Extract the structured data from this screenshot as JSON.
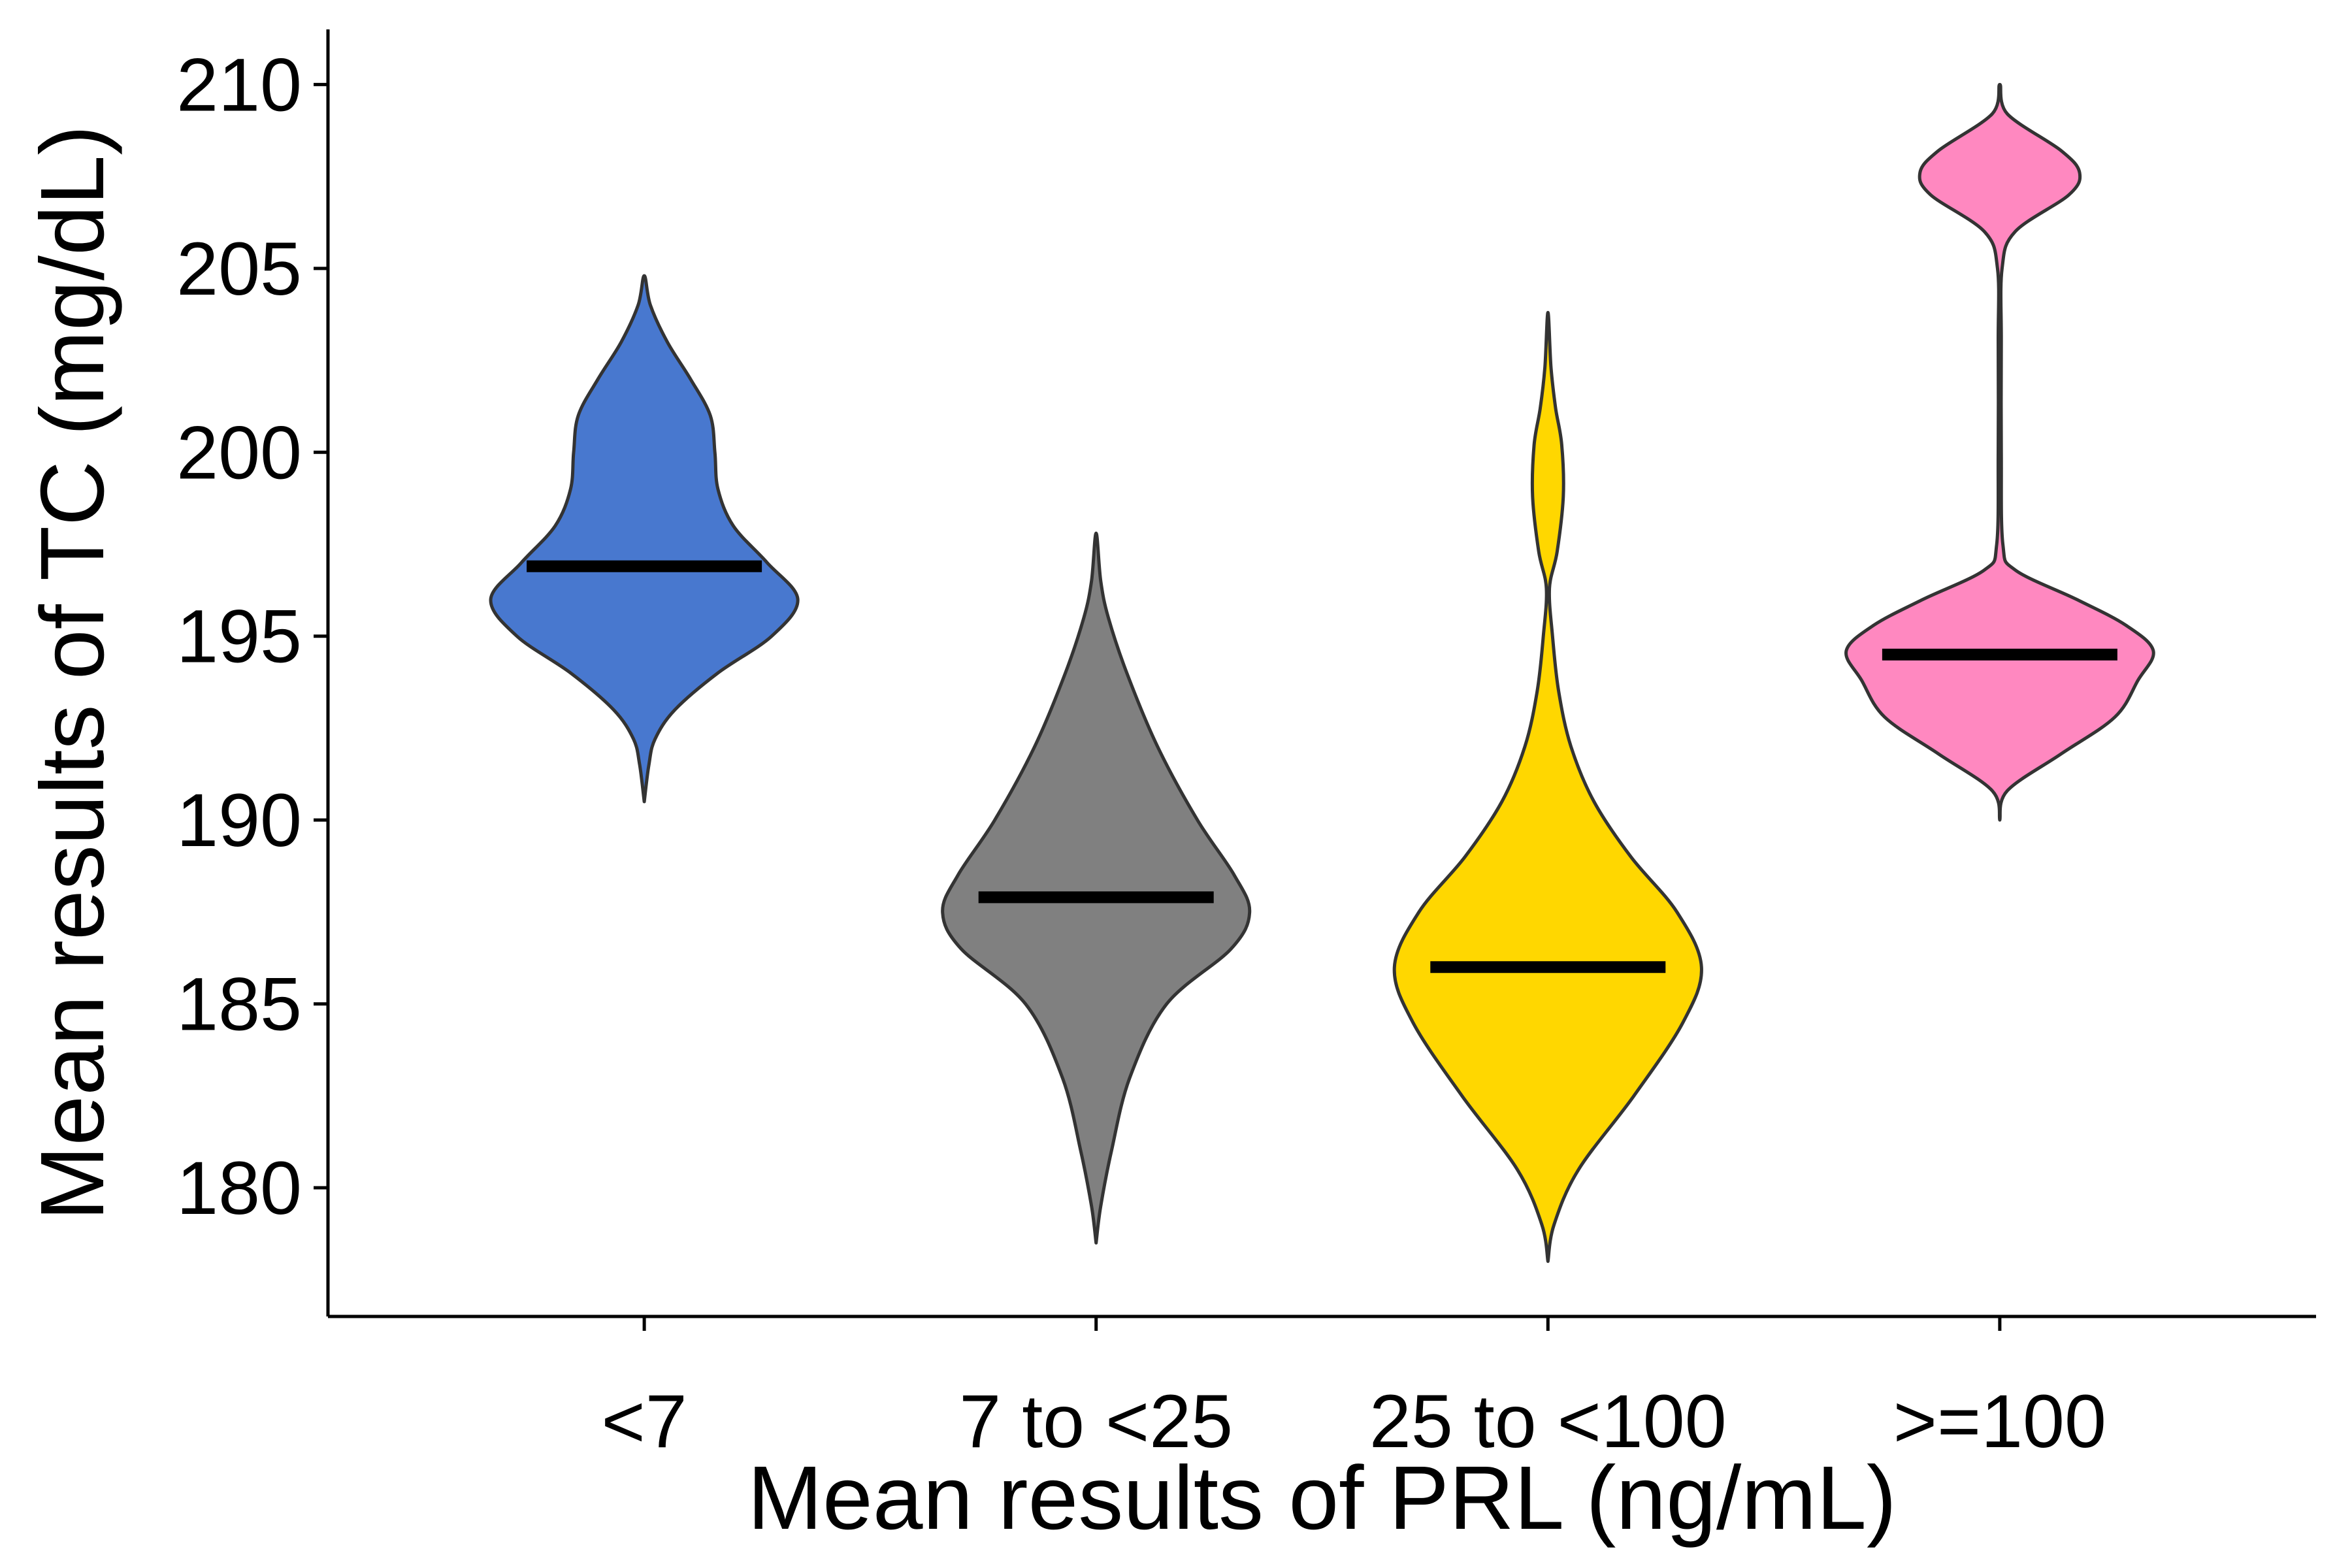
{
  "chart_data": {
    "type": "violin",
    "xlabel": "Mean results of PRL (ng/mL)",
    "ylabel": "Mean results of TC (mg/dL)",
    "ylim": [
      176.5,
      211.5
    ],
    "yticks": [
      180,
      185,
      190,
      195,
      200,
      205,
      210
    ],
    "grid": false,
    "legend": "none",
    "categories": [
      "<7",
      "7 to <25",
      "25 to <100",
      ">=100"
    ],
    "series": [
      {
        "category": "<7",
        "color": "#4878CF",
        "median": 196.9,
        "ymin": 190.5,
        "ymax": 204.8,
        "density": [
          [
            190.5,
            0
          ],
          [
            191.5,
            0.03
          ],
          [
            192.2,
            0.07
          ],
          [
            193,
            0.2
          ],
          [
            194,
            0.48
          ],
          [
            195,
            0.83
          ],
          [
            196,
            1.0
          ],
          [
            197,
            0.8
          ],
          [
            198,
            0.58
          ],
          [
            199,
            0.48
          ],
          [
            200,
            0.46
          ],
          [
            201,
            0.43
          ],
          [
            202,
            0.3
          ],
          [
            203,
            0.15
          ],
          [
            204,
            0.04
          ],
          [
            204.8,
            0
          ]
        ]
      },
      {
        "category": "7 to <25",
        "color": "#808080",
        "median": 187.9,
        "ymin": 178.5,
        "ymax": 197.8,
        "density": [
          [
            178.5,
            0
          ],
          [
            179.5,
            0.03
          ],
          [
            181,
            0.1
          ],
          [
            183,
            0.22
          ],
          [
            185,
            0.46
          ],
          [
            186.5,
            0.88
          ],
          [
            187.5,
            1.0
          ],
          [
            188.5,
            0.9
          ],
          [
            190,
            0.66
          ],
          [
            192,
            0.4
          ],
          [
            194,
            0.2
          ],
          [
            195.5,
            0.08
          ],
          [
            196.5,
            0.03
          ],
          [
            197.8,
            0
          ]
        ]
      },
      {
        "category": "25 to <100",
        "color": "#FFD700",
        "median": 186.0,
        "ymin": 178.0,
        "ymax": 203.8,
        "density": [
          [
            178,
            0
          ],
          [
            179,
            0.04
          ],
          [
            180.5,
            0.2
          ],
          [
            182.5,
            0.56
          ],
          [
            184.5,
            0.88
          ],
          [
            186,
            1.0
          ],
          [
            187.5,
            0.84
          ],
          [
            189,
            0.54
          ],
          [
            190.5,
            0.3
          ],
          [
            192,
            0.15
          ],
          [
            193.5,
            0.07
          ],
          [
            195,
            0.03
          ],
          [
            196.3,
            0.01
          ],
          [
            197.3,
            0.06
          ],
          [
            198.8,
            0.1
          ],
          [
            200.2,
            0.09
          ],
          [
            201.2,
            0.05
          ],
          [
            202.3,
            0.02
          ],
          [
            203.8,
            0
          ]
        ]
      },
      {
        "category": ">=100",
        "color": "#FF88C0",
        "median": 194.5,
        "ymin": 190.0,
        "ymax": 210.0,
        "density": [
          [
            190,
            0
          ],
          [
            190.8,
            0.05
          ],
          [
            191.8,
            0.4
          ],
          [
            192.8,
            0.75
          ],
          [
            193.8,
            0.9
          ],
          [
            194.6,
            1.0
          ],
          [
            195.3,
            0.82
          ],
          [
            196,
            0.5
          ],
          [
            196.8,
            0.1
          ],
          [
            197.5,
            0.02
          ],
          [
            200,
            0.01
          ],
          [
            203,
            0.01
          ],
          [
            205,
            0.015
          ],
          [
            206,
            0.1
          ],
          [
            207,
            0.45
          ],
          [
            207.6,
            0.52
          ],
          [
            208.2,
            0.4
          ],
          [
            209.2,
            0.05
          ],
          [
            210,
            0
          ]
        ]
      }
    ]
  }
}
